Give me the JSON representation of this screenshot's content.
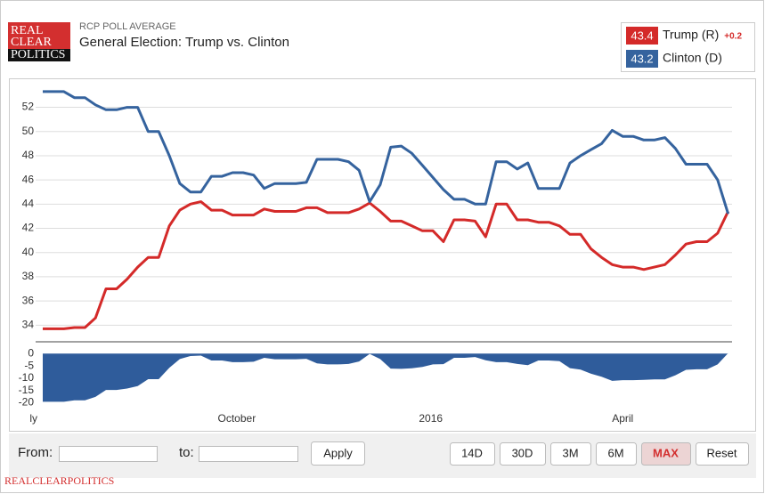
{
  "header": {
    "logo": [
      "REAL",
      "CLEAR",
      "POLITICS"
    ],
    "label": "RCP POLL AVERAGE",
    "title": "General Election: Trump vs. Clinton"
  },
  "chart_data": [
    {
      "type": "line",
      "x": [
        0,
        5,
        10,
        15,
        20,
        25,
        30,
        35,
        40,
        45,
        50,
        55,
        60,
        65,
        70,
        75,
        80,
        85,
        90,
        95,
        100,
        105,
        110,
        115,
        120,
        125,
        130,
        135,
        140,
        145,
        150,
        155,
        160,
        165,
        170,
        175,
        180,
        185,
        190,
        195,
        200,
        205,
        210,
        215,
        220,
        225,
        230,
        235,
        240,
        245,
        250,
        255,
        260,
        265,
        270,
        275,
        280,
        285,
        290,
        295,
        300,
        305,
        310,
        315,
        320,
        325
      ],
      "xlim": [
        0,
        326
      ],
      "ylim": [
        32.7,
        54.1
      ],
      "yticks": [
        34,
        36,
        38,
        40,
        42,
        44,
        46,
        48,
        50,
        52
      ],
      "grid": true,
      "series": [
        {
          "name": "Trump (R)",
          "color": "#d42a29",
          "change_label": "+0.2",
          "values": [
            33.7,
            33.7,
            33.7,
            33.8,
            33.8,
            34.6,
            37.0,
            37.0,
            37.8,
            38.8,
            39.6,
            39.6,
            42.2,
            43.5,
            44.0,
            44.2,
            43.5,
            43.5,
            43.1,
            43.1,
            43.1,
            43.6,
            43.4,
            43.4,
            43.4,
            43.7,
            43.7,
            43.3,
            43.3,
            43.3,
            43.6,
            44.1,
            43.4,
            42.6,
            42.6,
            42.2,
            41.8,
            41.8,
            40.9,
            42.7,
            42.7,
            42.6,
            41.3,
            44.0,
            44.0,
            42.7,
            42.7,
            42.5,
            42.5,
            42.2,
            41.5,
            41.5,
            40.3,
            39.6,
            39.0,
            38.8,
            38.8,
            38.6,
            38.8,
            39.0,
            39.8,
            40.7,
            40.9,
            40.9,
            41.6,
            43.4
          ]
        },
        {
          "name": "Clinton (D)",
          "color": "#35639e",
          "values": [
            53.3,
            53.3,
            53.3,
            52.8,
            52.8,
            52.2,
            51.8,
            51.8,
            52.0,
            52.0,
            50.0,
            50.0,
            48.0,
            45.7,
            45.0,
            45.0,
            46.3,
            46.3,
            46.6,
            46.6,
            46.4,
            45.3,
            45.7,
            45.7,
            45.7,
            45.8,
            47.7,
            47.7,
            47.7,
            47.5,
            46.8,
            44.2,
            45.6,
            48.7,
            48.8,
            48.2,
            47.2,
            46.2,
            45.2,
            44.4,
            44.4,
            44.0,
            44.0,
            47.5,
            47.5,
            46.9,
            47.4,
            45.3,
            45.3,
            45.3,
            47.4,
            48.0,
            48.5,
            49.0,
            50.1,
            49.6,
            49.6,
            49.3,
            49.3,
            49.5,
            48.6,
            47.3,
            47.3,
            47.3,
            46.0,
            43.2
          ]
        }
      ]
    },
    {
      "type": "area",
      "x": [
        0,
        5,
        10,
        15,
        20,
        25,
        30,
        35,
        40,
        45,
        50,
        55,
        60,
        65,
        70,
        75,
        80,
        85,
        90,
        95,
        100,
        105,
        110,
        115,
        120,
        125,
        130,
        135,
        140,
        145,
        150,
        155,
        160,
        165,
        170,
        175,
        180,
        185,
        190,
        195,
        200,
        205,
        210,
        215,
        220,
        225,
        230,
        235,
        240,
        245,
        250,
        255,
        260,
        265,
        270,
        275,
        280,
        285,
        290,
        295,
        300,
        305,
        310,
        315,
        320,
        325
      ],
      "xlim": [
        0,
        326
      ],
      "xticks": [
        {
          "value": 0,
          "label": "ly"
        },
        {
          "value": 92,
          "label": "October"
        },
        {
          "value": 184,
          "label": "2016"
        },
        {
          "value": 275,
          "label": "April"
        }
      ],
      "ylim": [
        -22,
        3
      ],
      "yticks": [
        0,
        -5,
        -10,
        -15,
        -20
      ],
      "color": "#2f5c9b",
      "values": [
        -19.6,
        -19.6,
        -19.6,
        -19.0,
        -19.0,
        -17.6,
        -14.8,
        -14.8,
        -14.2,
        -13.2,
        -10.4,
        -10.4,
        -5.8,
        -2.2,
        -1.0,
        -0.8,
        -2.8,
        -2.8,
        -3.5,
        -3.5,
        -3.3,
        -1.7,
        -2.3,
        -2.3,
        -2.3,
        -2.1,
        -4.0,
        -4.4,
        -4.4,
        -4.2,
        -3.2,
        -0.1,
        -2.2,
        -6.1,
        -6.2,
        -6.0,
        -5.4,
        -4.4,
        -4.3,
        -1.7,
        -1.7,
        -1.4,
        -2.7,
        -3.5,
        -3.5,
        -4.2,
        -4.7,
        -2.8,
        -2.8,
        -3.1,
        -5.9,
        -6.5,
        -8.2,
        -9.4,
        -11.1,
        -10.8,
        -10.8,
        -10.7,
        -10.5,
        -10.5,
        -8.8,
        -6.6,
        -6.4,
        -6.4,
        -4.4,
        0.2
      ]
    }
  ],
  "controls": {
    "from": "From:",
    "to": "to:",
    "apply": "Apply",
    "ranges": [
      "14D",
      "30D",
      "3M",
      "6M",
      "MAX",
      "Reset"
    ],
    "selected": "MAX"
  },
  "footer": "REALCLEARPOLITICS"
}
